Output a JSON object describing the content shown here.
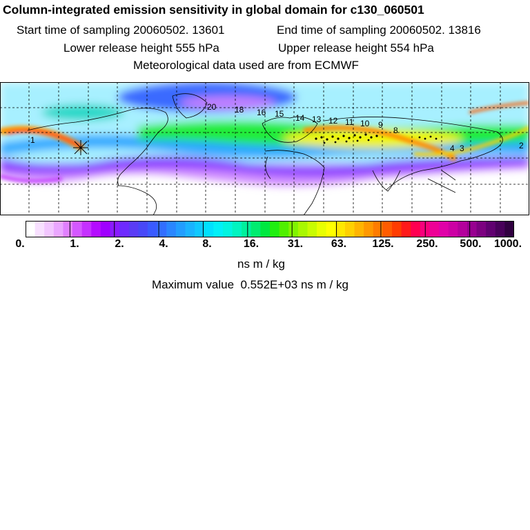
{
  "header": {
    "title": "Column-integrated emission sensitivity in global domain for c130_060501",
    "start_label": "Start time of sampling 20060502. 13601",
    "end_label": "End time of sampling 20060502. 13816",
    "lower_label": "Lower release height  555 hPa",
    "upper_label": "Upper release height  554 hPa",
    "met_label": "Meteorological data used are from ECMWF"
  },
  "map": {
    "contour_labels": [
      "1",
      "20",
      "18",
      "16",
      "15",
      "14",
      "13",
      "12",
      "11",
      "10",
      "9",
      "8",
      "4",
      "3",
      "2"
    ],
    "colors": {
      "ocean_base": "#a7f0ff",
      "coast": "#000000",
      "grid": "#000000"
    }
  },
  "colorbar": {
    "labels": [
      "0.",
      "1.",
      "2.",
      "4.",
      "8.",
      "16.",
      "31.",
      "63.",
      "125.",
      "250.",
      "500.",
      "1000."
    ],
    "colors": [
      "#ffffff",
      "#f8e0ff",
      "#f2c6ff",
      "#eaa6ff",
      "#e080ff",
      "#d458ff",
      "#c531ff",
      "#b40cff",
      "#9f00ff",
      "#8a1bff",
      "#6e2bff",
      "#5a3cf5",
      "#4848f8",
      "#3a5aff",
      "#326eff",
      "#2a86ff",
      "#229dff",
      "#1ab3ff",
      "#10c8ff",
      "#00e0ff",
      "#00f0f8",
      "#00f4e0",
      "#00f4c0",
      "#00f09c",
      "#00ec70",
      "#00e840",
      "#20ee10",
      "#50f000",
      "#80f400",
      "#a8f800",
      "#c8fc00",
      "#e8ff00",
      "#ffff00",
      "#ffe800",
      "#ffd000",
      "#ffb400",
      "#ff9800",
      "#ff7c00",
      "#ff5c00",
      "#ff3c00",
      "#ff1a1a",
      "#ff0050",
      "#f8007c",
      "#ee0096",
      "#e000a8",
      "#cc00a4",
      "#b4009c",
      "#980090",
      "#7c0080",
      "#600070",
      "#48005a",
      "#300040"
    ]
  },
  "units": "ns m / kg",
  "maximum": {
    "label": "Maximum value",
    "value": "0.552E+03",
    "unit": "ns m / kg"
  }
}
